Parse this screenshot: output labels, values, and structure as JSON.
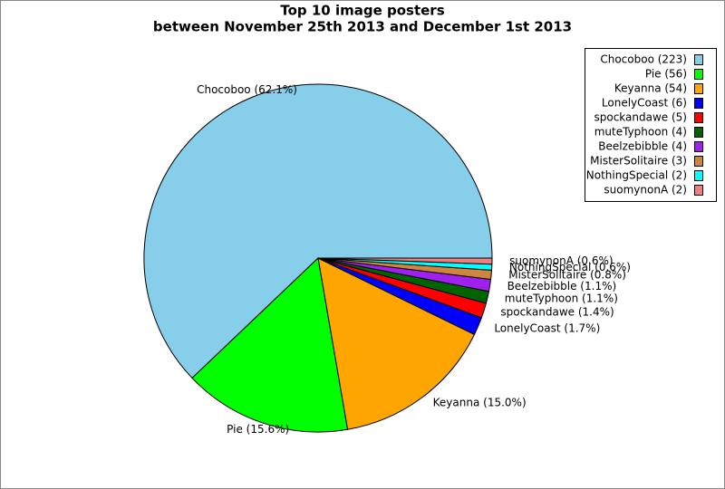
{
  "chart_data": {
    "type": "pie",
    "title": "Top 10 image posters",
    "subtitle": "between November 25th 2013 and December 1st 2013",
    "values": [
      223,
      56,
      54,
      6,
      5,
      4,
      4,
      3,
      2,
      2
    ],
    "slice_labels": [
      "Chocoboo (62.1%)",
      "Pie (15.6%)",
      "Keyanna (15.0%)",
      "LonelyCoast (1.7%)",
      "spockandawe (1.4%)",
      "muteTyphoon (1.1%)",
      "Beelzebibble (1.1%)",
      "MisterSolitaire (0.8%)",
      "NothingSpecial (0.6%)",
      "suomynonA (0.6%)"
    ],
    "legend_labels": [
      "Chocoboo (223)",
      "Pie (56)",
      "Keyanna (54)",
      "LonelyCoast (6)",
      "spockandawe (5)",
      "muteTyphoon (4)",
      "Beelzebibble (4)",
      "MisterSolitaire (3)",
      "NothingSpecial (2)",
      "suomynonA (2)"
    ],
    "colors": [
      "#87ceeb",
      "#00ff00",
      "#ffa500",
      "#0000ff",
      "#ff0000",
      "#006400",
      "#a020f0",
      "#cd853f",
      "#00ffff",
      "#f08080"
    ],
    "legend": "upper right"
  }
}
